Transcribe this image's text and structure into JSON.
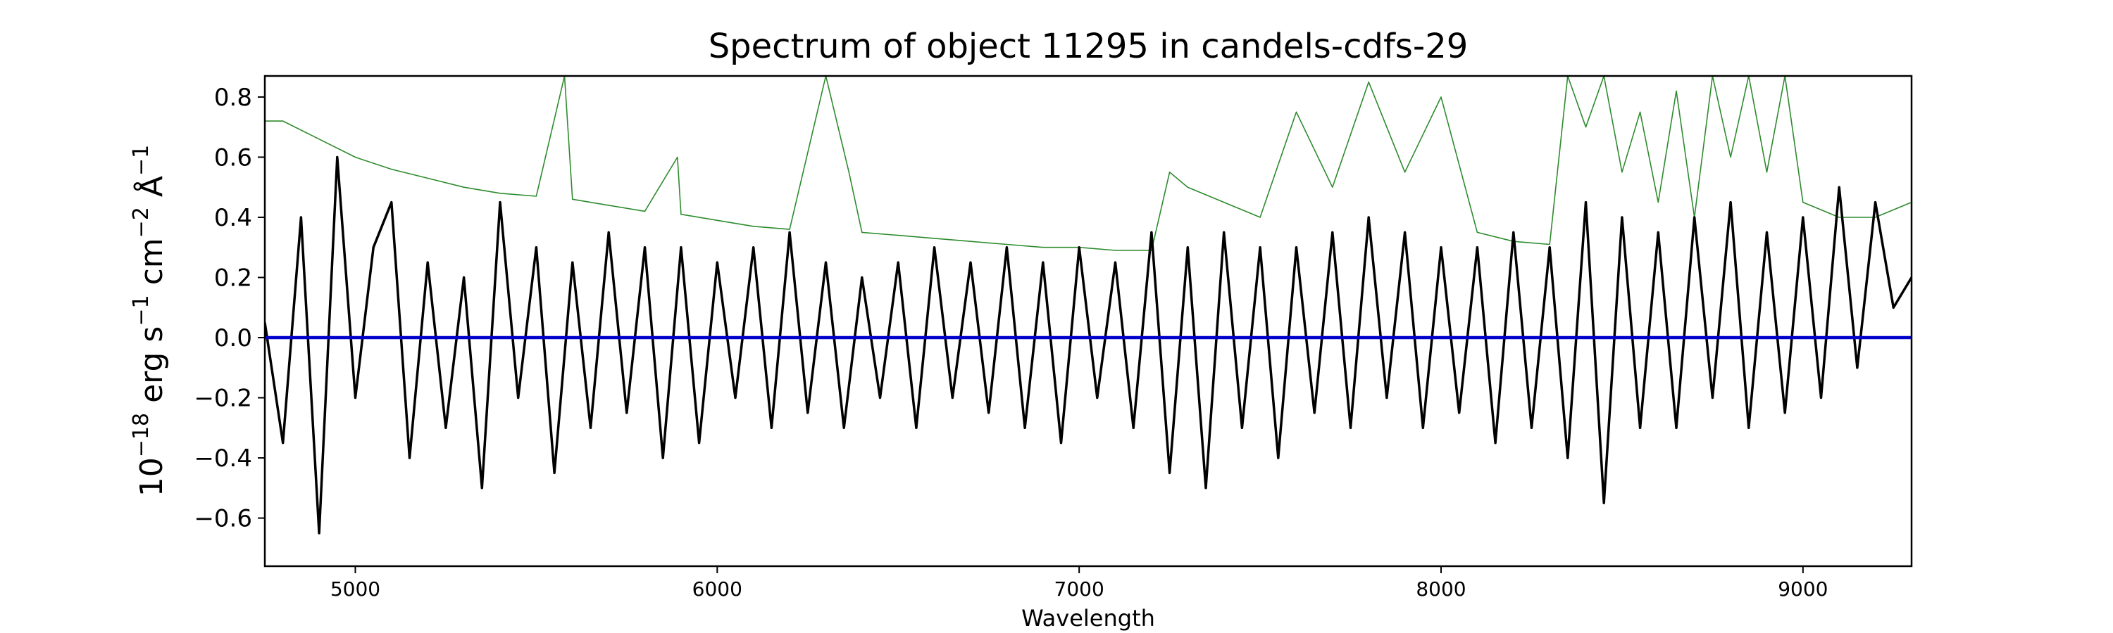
{
  "chart_data": {
    "type": "line",
    "title": "Spectrum of object 11295 in candels-cdfs-29",
    "xlabel": "Wavelength",
    "ylabel": {
      "base": "10",
      "exp": "−18",
      "text1": " erg s",
      "exp2": "−1",
      "text2": " cm",
      "exp3": "−2",
      "text3": " Å",
      "exp4": "−1"
    },
    "xlim": [
      4750,
      9300
    ],
    "ylim": [
      -0.76,
      0.87
    ],
    "x_ticks": [
      5000,
      6000,
      7000,
      8000,
      9000
    ],
    "x_tick_labels": [
      "5000",
      "6000",
      "7000",
      "8000",
      "9000"
    ],
    "y_ticks": [
      -0.6,
      -0.4,
      -0.2,
      0.0,
      0.2,
      0.4,
      0.6,
      0.8
    ],
    "y_tick_labels": [
      "−0.6",
      "−0.4",
      "−0.2",
      "0.0",
      "0.2",
      "0.4",
      "0.6",
      "0.8"
    ],
    "grid": false,
    "colors": {
      "flux": "#000000",
      "sky": "#2e8b2e",
      "zero": "#0000cc"
    },
    "series": [
      {
        "role": "flux",
        "x": [
          4750,
          4800,
          4850,
          4900,
          4950,
          5000,
          5050,
          5100,
          5150,
          5200,
          5250,
          5300,
          5350,
          5400,
          5450,
          5500,
          5550,
          5600,
          5650,
          5700,
          5750,
          5800,
          5850,
          5900,
          5950,
          6000,
          6050,
          6100,
          6150,
          6200,
          6250,
          6300,
          6350,
          6400,
          6450,
          6500,
          6550,
          6600,
          6650,
          6700,
          6750,
          6800,
          6850,
          6900,
          6950,
          7000,
          7050,
          7100,
          7150,
          7200,
          7250,
          7300,
          7350,
          7400,
          7450,
          7500,
          7550,
          7600,
          7650,
          7700,
          7750,
          7800,
          7850,
          7900,
          7950,
          8000,
          8050,
          8100,
          8150,
          8200,
          8250,
          8300,
          8350,
          8400,
          8450,
          8500,
          8550,
          8600,
          8650,
          8700,
          8750,
          8800,
          8850,
          8900,
          8950,
          9000,
          9050,
          9100,
          9150,
          9200,
          9250,
          9300
        ],
        "y": [
          0.05,
          -0.35,
          0.4,
          -0.65,
          0.6,
          -0.2,
          0.3,
          0.45,
          -0.4,
          0.25,
          -0.3,
          0.2,
          -0.5,
          0.45,
          -0.2,
          0.3,
          -0.45,
          0.25,
          -0.3,
          0.35,
          -0.25,
          0.3,
          -0.4,
          0.3,
          -0.35,
          0.25,
          -0.2,
          0.3,
          -0.3,
          0.35,
          -0.25,
          0.25,
          -0.3,
          0.2,
          -0.2,
          0.25,
          -0.3,
          0.3,
          -0.2,
          0.25,
          -0.25,
          0.3,
          -0.3,
          0.25,
          -0.35,
          0.3,
          -0.2,
          0.25,
          -0.3,
          0.35,
          -0.45,
          0.3,
          -0.5,
          0.35,
          -0.3,
          0.3,
          -0.4,
          0.3,
          -0.25,
          0.35,
          -0.3,
          0.4,
          -0.2,
          0.35,
          -0.3,
          0.3,
          -0.25,
          0.3,
          -0.35,
          0.35,
          -0.3,
          0.3,
          -0.4,
          0.45,
          -0.55,
          0.4,
          -0.3,
          0.35,
          -0.3,
          0.4,
          -0.2,
          0.45,
          -0.3,
          0.35,
          -0.25,
          0.4,
          -0.2,
          0.5,
          -0.1,
          0.45,
          0.1,
          0.2
        ]
      },
      {
        "role": "sky",
        "x": [
          4750,
          4800,
          4900,
          5000,
          5100,
          5200,
          5300,
          5400,
          5500,
          5578,
          5600,
          5700,
          5800,
          5890,
          5900,
          6000,
          6100,
          6200,
          6300,
          6364,
          6400,
          6500,
          6600,
          6700,
          6800,
          6900,
          7000,
          7100,
          7200,
          7250,
          7300,
          7400,
          7500,
          7600,
          7700,
          7800,
          7900,
          8000,
          8100,
          8200,
          8300,
          8350,
          8400,
          8450,
          8500,
          8550,
          8600,
          8650,
          8700,
          8750,
          8800,
          8850,
          8900,
          8950,
          9000,
          9100,
          9200,
          9300
        ],
        "y": [
          0.72,
          0.72,
          0.66,
          0.6,
          0.56,
          0.53,
          0.5,
          0.48,
          0.47,
          0.87,
          0.46,
          0.44,
          0.42,
          0.6,
          0.41,
          0.39,
          0.37,
          0.36,
          0.87,
          0.55,
          0.35,
          0.34,
          0.33,
          0.32,
          0.31,
          0.3,
          0.3,
          0.29,
          0.29,
          0.55,
          0.5,
          0.45,
          0.4,
          0.75,
          0.5,
          0.85,
          0.55,
          0.8,
          0.35,
          0.32,
          0.31,
          0.87,
          0.7,
          0.87,
          0.55,
          0.75,
          0.45,
          0.82,
          0.4,
          0.87,
          0.6,
          0.87,
          0.55,
          0.87,
          0.45,
          0.4,
          0.4,
          0.45
        ]
      },
      {
        "role": "zero",
        "x": [
          4750,
          9300
        ],
        "y": [
          0.0,
          0.0
        ]
      }
    ]
  }
}
